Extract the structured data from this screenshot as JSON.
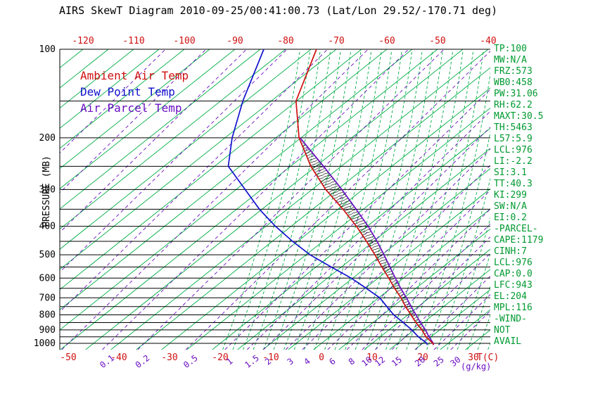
{
  "title": "AIRS SkewT Diagram 2010-09-25/00:41:00.73 (Lat/Lon 29.52/-170.71 deg)",
  "colors": {
    "ambient_temp": "#cf1010",
    "dew_point": "#1212cc",
    "parcel": "#6a0fc2",
    "grid_green": "#00ae45",
    "stats_green": "#009a30",
    "mixing_ratio": "#6a0fc2",
    "pressure_lines": "#000000",
    "hatch": "#1a1a1a"
  },
  "legend": [
    {
      "label": "Ambient Air Temp",
      "color": "#cf1010"
    },
    {
      "label": "Dew Point Temp",
      "color": "#1212cc"
    },
    {
      "label": "Air Parcel Temp",
      "color": "#6a0fc2"
    }
  ],
  "stats": [
    "TP:100",
    "MW:N/A",
    "FRZ:573",
    "WB0:458",
    "PW:31.06",
    "RH:62.2",
    "MAXT:30.5",
    "TH:5463",
    "L57:5.9",
    "LCL:976",
    "LI:-2.2",
    "SI:3.1",
    "TT:40.3",
    "KI:299",
    "SW:N/A",
    "EI:0.2",
    "-PARCEL-",
    "CAPE:1179",
    "CINH:7",
    "LCL:976",
    "CAP:0.0",
    "LFC:943",
    "EL:204",
    "MPL:116",
    "-WIND-",
    "NOT",
    "AVAIL"
  ],
  "chart_data": {
    "type": "line",
    "title": "AIRS SkewT Diagram 2010-09-25/00:41:00.73 (Lat/Lon 29.52/-170.71 deg)",
    "description": "Skew-T / log-P thermodynamic sounding diagram",
    "y_axis": {
      "label": "PRESSURE (MB)",
      "scale": "log",
      "inverted": true,
      "ticks": [
        100,
        200,
        300,
        400,
        500,
        600,
        700,
        800,
        900,
        1000
      ],
      "gridline_step_mb": 50,
      "range": [
        100,
        1000
      ]
    },
    "x_axis": {
      "unit_label": "T(C)",
      "skew": "isotherms slanted toward upper right",
      "isotherm_step_c": 5,
      "top_ticks": [
        -120,
        -110,
        -100,
        -90,
        -80,
        -70,
        -60,
        -50,
        -40
      ],
      "bottom_ticks": [
        -50,
        -40,
        -30,
        -20,
        -10,
        0,
        10,
        20,
        30
      ]
    },
    "mixing_ratio_axis": {
      "unit_label": "(g/kg)",
      "ticks": [
        0.1,
        0.2,
        0.5,
        1,
        1.5,
        2,
        3,
        4,
        6,
        8,
        10,
        12,
        15,
        20,
        25,
        30
      ]
    },
    "pressure_levels": [
      1013,
      1000,
      950,
      900,
      850,
      800,
      750,
      700,
      650,
      600,
      550,
      500,
      450,
      400,
      350,
      300,
      250,
      200,
      150,
      100
    ],
    "series": [
      {
        "name": "Ambient Air Temp",
        "color": "#cf1010",
        "values": [
          22.5,
          22.0,
          19.0,
          16.5,
          13.5,
          10.6,
          7.5,
          4.4,
          0.8,
          -2.9,
          -7.0,
          -11.4,
          -16.4,
          -22.1,
          -29.0,
          -37.3,
          -46.0,
          -55.4,
          -65.1,
          -73.9
        ]
      },
      {
        "name": "Dew Point Temp",
        "color": "#1212cc",
        "values": [
          21.3,
          20.8,
          17.5,
          14.5,
          11.0,
          7.2,
          3.8,
          0.2,
          -4.8,
          -10.3,
          -17.0,
          -24.2,
          -31.0,
          -38.1,
          -45.5,
          -53.2,
          -62.3,
          -68.6,
          -75.6,
          -84.3
        ]
      },
      {
        "name": "Air Parcel Temp",
        "color": "#6a0fc2",
        "values": [
          22.5,
          22.1,
          19.6,
          17.2,
          14.4,
          11.6,
          8.6,
          5.5,
          2.0,
          -1.6,
          -5.4,
          -9.6,
          -14.3,
          -19.8,
          -26.4,
          -34.1,
          -43.5,
          -55.2,
          null,
          null
        ]
      }
    ],
    "cape_hatch": {
      "from_mb": 943,
      "to_mb": 204,
      "note": "hatched positive area between parcel and ambient temperature (LFC 943 to EL 204)"
    }
  }
}
